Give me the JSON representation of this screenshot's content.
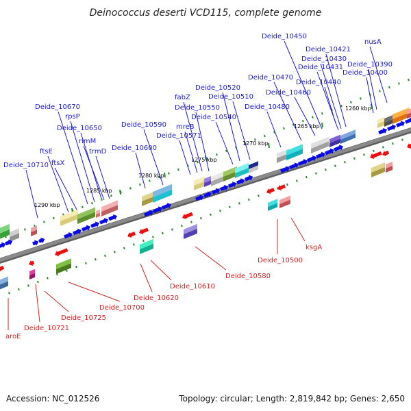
{
  "title": "Deinococcus deserti VCD115, complete genome",
  "footer": {
    "accession": "Accession: NC_012526",
    "summary": "Topology: circular; Length: 2,819,842 bp; Genes: 2,650"
  },
  "colors": {
    "forward_label": "#1a1acc",
    "reverse_label": "#d42020",
    "cds_arrow": "#0a0ae6",
    "backbone": "#8a8a8a",
    "tick": "#2a8a2a"
  },
  "scale_ticks": [
    "1260 kbp",
    "1265 kbp",
    "1270 kbp",
    "1275 kbp",
    "1280 kbp",
    "1285 kbp",
    "1290 kbp"
  ],
  "forward_genes": [
    "nusA",
    "Deide_10390",
    "Deide_10400",
    "Deide_10421",
    "Deide_10430",
    "Deide_10431",
    "Deide_10440",
    "Deide_10450",
    "Deide_10460",
    "Deide_10470",
    "Deide_10480",
    "Deide_10510",
    "Deide_10520",
    "Deide_10540",
    "fabZ",
    "Deide_10550",
    "mreB",
    "Deide_10571",
    "Deide_10590",
    "Deide_10600",
    "Deide_10650",
    "rpsP",
    "Deide_10670",
    "rimM",
    "trmD",
    "ftsE",
    "ftsX",
    "Deide_10710"
  ],
  "reverse_genes": [
    "ksgA",
    "Deide_10500",
    "Deide_10580",
    "Deide_10610",
    "Deide_10620",
    "Deide_10700",
    "Deide_10725",
    "Deide_10721",
    "aroE"
  ]
}
